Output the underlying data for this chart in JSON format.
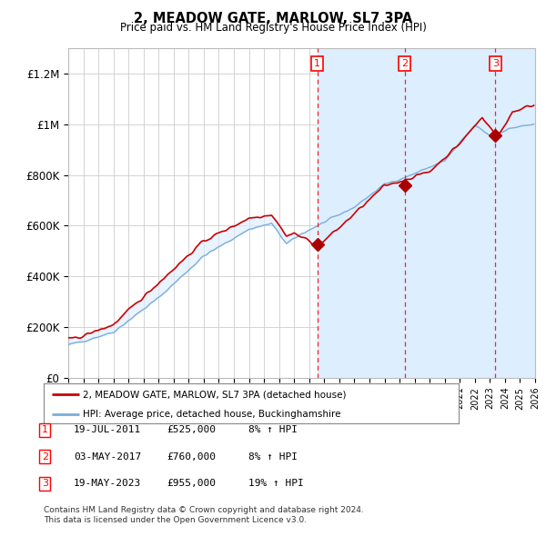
{
  "title": "2, MEADOW GATE, MARLOW, SL7 3PA",
  "subtitle": "Price paid vs. HM Land Registry's House Price Index (HPI)",
  "ylabel_ticks": [
    "£0",
    "£200K",
    "£400K",
    "£600K",
    "£800K",
    "£1M",
    "£1.2M"
  ],
  "ytick_values": [
    0,
    200000,
    400000,
    600000,
    800000,
    1000000,
    1200000
  ],
  "ylim": [
    0,
    1300000
  ],
  "xlim_start": 1995.0,
  "xlim_end": 2026.0,
  "hpi_color": "#7aaed6",
  "price_color": "#cc0000",
  "sale_marker_color": "#aa0000",
  "transactions": [
    {
      "label": "1",
      "date": 2011.54,
      "price": 525000
    },
    {
      "label": "2",
      "date": 2017.33,
      "price": 760000
    },
    {
      "label": "3",
      "date": 2023.37,
      "price": 955000
    }
  ],
  "legend_entries": [
    "2, MEADOW GATE, MARLOW, SL7 3PA (detached house)",
    "HPI: Average price, detached house, Buckinghamshire"
  ],
  "footnote1": "Contains HM Land Registry data © Crown copyright and database right 2024.",
  "footnote2": "This data is licensed under the Open Government Licence v3.0.",
  "table_rows": [
    [
      "1",
      "19-JUL-2011",
      "£525,000",
      "8% ↑ HPI"
    ],
    [
      "2",
      "03-MAY-2017",
      "£760,000",
      "8% ↑ HPI"
    ],
    [
      "3",
      "19-MAY-2023",
      "£955,000",
      "19% ↑ HPI"
    ]
  ],
  "band_color": "#ddeeff",
  "shade_col1_color": "#ddeeff",
  "grid_color": "#cccccc",
  "bg_color": "#ffffff",
  "future_start": 2024.5,
  "hatch_pattern": "////"
}
